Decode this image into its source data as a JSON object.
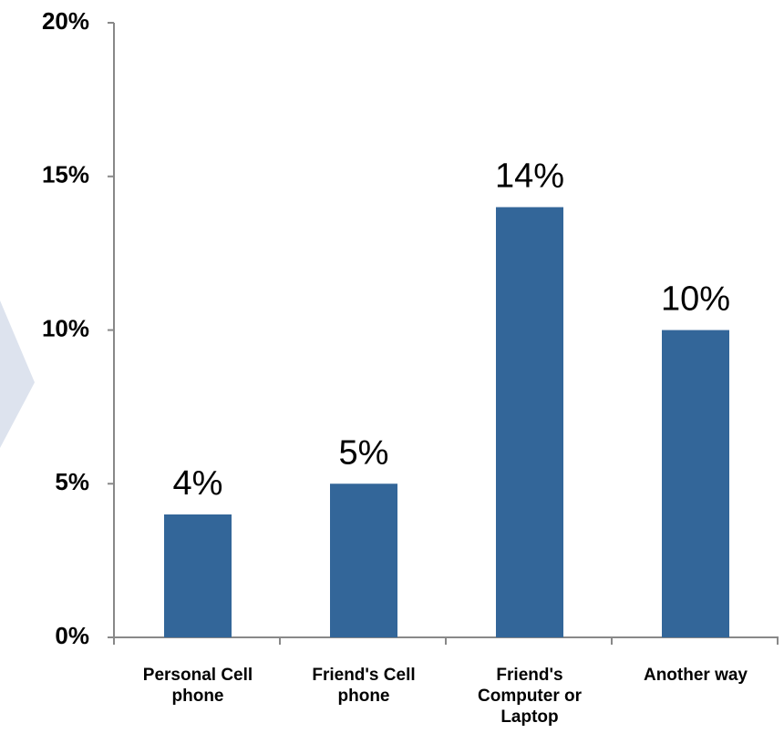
{
  "chart_data": {
    "type": "bar",
    "categories": [
      "Personal Cell phone",
      "Friend's Cell phone",
      "Friend's Computer or Laptop",
      "Another way"
    ],
    "values": [
      4,
      5,
      14,
      10
    ],
    "value_labels": [
      "4%",
      "5%",
      "14%",
      "10%"
    ],
    "color": "#336699",
    "ylim": [
      0,
      20
    ],
    "yticks": [
      {
        "value": 0,
        "label": "0%"
      },
      {
        "value": 5,
        "label": "5%"
      },
      {
        "value": 10,
        "label": "10%"
      },
      {
        "value": 15,
        "label": "15%"
      },
      {
        "value": 20,
        "label": "20%"
      }
    ],
    "grid": false
  }
}
